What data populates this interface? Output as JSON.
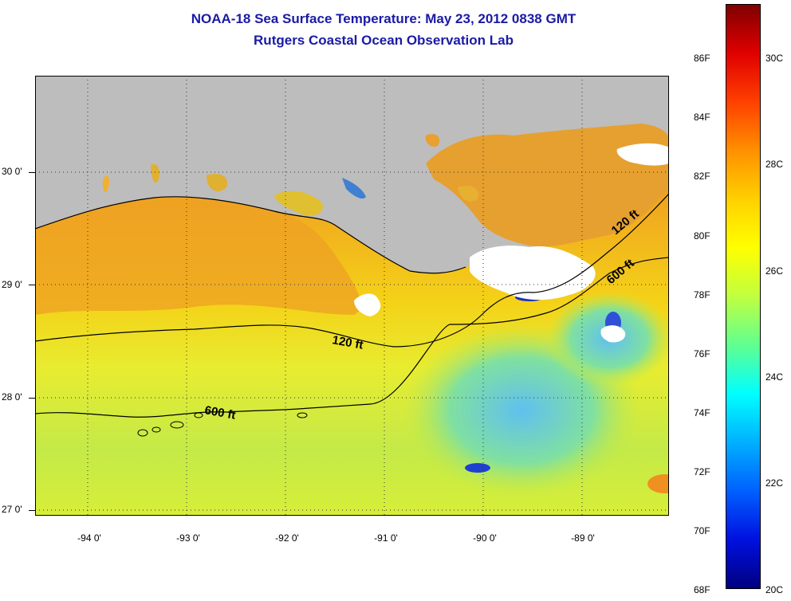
{
  "header": {
    "title": "NOAA-18 Sea Surface Temperature:  May 23, 2012 0838 GMT",
    "subtitle": "Rutgers Coastal Ocean Observation Lab"
  },
  "map": {
    "lat_labels": [
      "30 0'",
      "29 0'",
      "28 0'",
      "27 0'"
    ],
    "lon_labels": [
      "-94 0'",
      "-93 0'",
      "-92 0'",
      "-91 0'",
      "-90 0'",
      "-89 0'"
    ],
    "contour_labels": [
      "120 ft",
      "600 ft",
      "120 ft",
      "600 ft"
    ],
    "colors": {
      "land": "#bdbdbd",
      "cloud": "#ffffff",
      "warm_water": "#f0a020",
      "mid_water": "#f4e200",
      "cool_water": "#a8e050",
      "cold_patch": "#2040d0"
    }
  },
  "colorbar": {
    "f_labels": [
      "86F",
      "84F",
      "82F",
      "80F",
      "78F",
      "76F",
      "74F",
      "72F",
      "70F",
      "68F"
    ],
    "c_labels": [
      "30C",
      "28C",
      "26C",
      "24C",
      "22C",
      "20C"
    ],
    "colors": [
      "#800000",
      "#e00000",
      "#ff4000",
      "#ff9000",
      "#ffd000",
      "#ffff00",
      "#c0ff40",
      "#60ff90",
      "#00ffff",
      "#00b0ff",
      "#0060ff",
      "#0010e0",
      "#000080"
    ]
  }
}
